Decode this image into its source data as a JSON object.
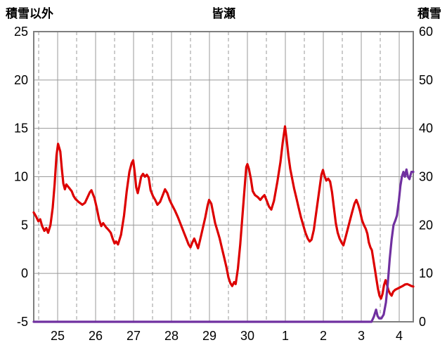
{
  "header": {
    "left_axis_title": "積雪以外",
    "chart_title": "皆瀬",
    "right_axis_title": "積雪"
  },
  "chart_data": {
    "type": "line",
    "title": "皆瀬",
    "left_axis": {
      "label": "積雪以外",
      "min": -5,
      "max": 25,
      "ticks": [
        25,
        20,
        15,
        10,
        5,
        0,
        -5
      ]
    },
    "right_axis": {
      "label": "積雪",
      "min": 0,
      "max": 60,
      "ticks": [
        60,
        50,
        40,
        30,
        20,
        10,
        0
      ]
    },
    "x_axis": {
      "range": [
        0,
        10
      ],
      "day_labels": [
        "25",
        "26",
        "27",
        "28",
        "29",
        "30",
        "1",
        "2",
        "3",
        "4"
      ],
      "label_positions": [
        0.63,
        1.63,
        2.63,
        3.63,
        4.63,
        5.63,
        6.63,
        7.63,
        8.63,
        9.63
      ],
      "dashed_positions": [
        0.13,
        1.13,
        2.13,
        3.13,
        4.13,
        5.13,
        6.13,
        7.13,
        8.13,
        9.13
      ]
    },
    "grid": {
      "on": true,
      "color": "#999999",
      "frame_color": "#7f7f7f"
    },
    "legend": "none",
    "series": [
      {
        "name": "積雪以外",
        "axis": "left",
        "color": "#dd0000",
        "width": 3.2,
        "points": [
          [
            0,
            6.3
          ],
          [
            0.06,
            5.9
          ],
          [
            0.12,
            5.4
          ],
          [
            0.17,
            5.6
          ],
          [
            0.22,
            4.9
          ],
          [
            0.28,
            4.4
          ],
          [
            0.33,
            4.7
          ],
          [
            0.38,
            4.2
          ],
          [
            0.44,
            5.0
          ],
          [
            0.5,
            6.8
          ],
          [
            0.55,
            9.2
          ],
          [
            0.6,
            12.2
          ],
          [
            0.64,
            13.4
          ],
          [
            0.7,
            12.6
          ],
          [
            0.74,
            10.8
          ],
          [
            0.78,
            9.3
          ],
          [
            0.82,
            8.7
          ],
          [
            0.86,
            9.2
          ],
          [
            0.92,
            8.9
          ],
          [
            1.0,
            8.5
          ],
          [
            1.05,
            8.0
          ],
          [
            1.1,
            7.7
          ],
          [
            1.18,
            7.4
          ],
          [
            1.28,
            7.1
          ],
          [
            1.35,
            7.3
          ],
          [
            1.42,
            7.9
          ],
          [
            1.48,
            8.4
          ],
          [
            1.52,
            8.6
          ],
          [
            1.56,
            8.2
          ],
          [
            1.6,
            7.8
          ],
          [
            1.66,
            6.8
          ],
          [
            1.72,
            5.6
          ],
          [
            1.78,
            4.9
          ],
          [
            1.83,
            5.2
          ],
          [
            1.9,
            4.8
          ],
          [
            1.97,
            4.5
          ],
          [
            2.03,
            4.2
          ],
          [
            2.08,
            3.6
          ],
          [
            2.13,
            3.1
          ],
          [
            2.17,
            3.3
          ],
          [
            2.22,
            3.0
          ],
          [
            2.3,
            4.0
          ],
          [
            2.38,
            6.0
          ],
          [
            2.45,
            8.5
          ],
          [
            2.52,
            10.5
          ],
          [
            2.58,
            11.4
          ],
          [
            2.62,
            11.7
          ],
          [
            2.66,
            10.5
          ],
          [
            2.7,
            8.9
          ],
          [
            2.74,
            8.3
          ],
          [
            2.79,
            9.2
          ],
          [
            2.83,
            10.0
          ],
          [
            2.88,
            10.3
          ],
          [
            2.93,
            10.0
          ],
          [
            2.98,
            10.2
          ],
          [
            3.03,
            9.9
          ],
          [
            3.08,
            8.6
          ],
          [
            3.14,
            8.0
          ],
          [
            3.2,
            7.6
          ],
          [
            3.26,
            7.1
          ],
          [
            3.33,
            7.4
          ],
          [
            3.4,
            8.1
          ],
          [
            3.46,
            8.7
          ],
          [
            3.52,
            8.3
          ],
          [
            3.58,
            7.6
          ],
          [
            3.64,
            7.1
          ],
          [
            3.72,
            6.5
          ],
          [
            3.8,
            5.8
          ],
          [
            3.88,
            5.0
          ],
          [
            3.96,
            4.2
          ],
          [
            4.02,
            3.6
          ],
          [
            4.08,
            3.0
          ],
          [
            4.13,
            2.7
          ],
          [
            4.18,
            3.2
          ],
          [
            4.23,
            3.6
          ],
          [
            4.28,
            3.1
          ],
          [
            4.33,
            2.6
          ],
          [
            4.38,
            3.4
          ],
          [
            4.45,
            4.6
          ],
          [
            4.52,
            5.8
          ],
          [
            4.58,
            7.0
          ],
          [
            4.62,
            7.6
          ],
          [
            4.68,
            7.2
          ],
          [
            4.73,
            6.2
          ],
          [
            4.78,
            5.2
          ],
          [
            4.84,
            4.4
          ],
          [
            4.9,
            3.6
          ],
          [
            4.96,
            2.6
          ],
          [
            5.02,
            1.6
          ],
          [
            5.08,
            0.6
          ],
          [
            5.13,
            -0.4
          ],
          [
            5.18,
            -1.0
          ],
          [
            5.23,
            -1.3
          ],
          [
            5.28,
            -0.9
          ],
          [
            5.32,
            -1.1
          ],
          [
            5.38,
            0.5
          ],
          [
            5.44,
            3.0
          ],
          [
            5.5,
            6.0
          ],
          [
            5.56,
            9.0
          ],
          [
            5.6,
            11.0
          ],
          [
            5.63,
            11.3
          ],
          [
            5.67,
            10.8
          ],
          [
            5.72,
            9.8
          ],
          [
            5.77,
            8.5
          ],
          [
            5.83,
            8.1
          ],
          [
            5.9,
            7.9
          ],
          [
            5.97,
            7.6
          ],
          [
            6.03,
            7.9
          ],
          [
            6.08,
            8.1
          ],
          [
            6.14,
            7.5
          ],
          [
            6.2,
            6.9
          ],
          [
            6.26,
            6.6
          ],
          [
            6.33,
            7.5
          ],
          [
            6.42,
            9.5
          ],
          [
            6.5,
            11.5
          ],
          [
            6.56,
            13.5
          ],
          [
            6.62,
            15.2
          ],
          [
            6.66,
            14.0
          ],
          [
            6.71,
            12.2
          ],
          [
            6.76,
            10.8
          ],
          [
            6.81,
            9.8
          ],
          [
            6.86,
            8.8
          ],
          [
            6.92,
            7.8
          ],
          [
            6.98,
            6.8
          ],
          [
            7.04,
            5.8
          ],
          [
            7.1,
            5.0
          ],
          [
            7.16,
            4.2
          ],
          [
            7.22,
            3.6
          ],
          [
            7.27,
            3.3
          ],
          [
            7.32,
            3.5
          ],
          [
            7.38,
            4.5
          ],
          [
            7.45,
            6.5
          ],
          [
            7.52,
            8.5
          ],
          [
            7.58,
            10.2
          ],
          [
            7.62,
            10.7
          ],
          [
            7.66,
            10.1
          ],
          [
            7.71,
            9.6
          ],
          [
            7.76,
            9.8
          ],
          [
            7.81,
            9.5
          ],
          [
            7.86,
            8.4
          ],
          [
            7.91,
            6.8
          ],
          [
            7.96,
            5.2
          ],
          [
            8.01,
            4.2
          ],
          [
            8.06,
            3.6
          ],
          [
            8.11,
            3.2
          ],
          [
            8.16,
            2.9
          ],
          [
            8.22,
            3.8
          ],
          [
            8.3,
            5.0
          ],
          [
            8.38,
            6.2
          ],
          [
            8.45,
            7.2
          ],
          [
            8.5,
            7.6
          ],
          [
            8.55,
            7.1
          ],
          [
            8.6,
            6.4
          ],
          [
            8.65,
            5.5
          ],
          [
            8.7,
            5.0
          ],
          [
            8.75,
            4.6
          ],
          [
            8.79,
            4.1
          ],
          [
            8.83,
            3.2
          ],
          [
            8.87,
            2.7
          ],
          [
            8.91,
            2.4
          ],
          [
            8.95,
            1.4
          ],
          [
            8.99,
            0.4
          ],
          [
            9.03,
            -0.6
          ],
          [
            9.07,
            -1.6
          ],
          [
            9.11,
            -2.3
          ],
          [
            9.15,
            -2.6
          ],
          [
            9.19,
            -2.1
          ],
          [
            9.23,
            -1.2
          ],
          [
            9.27,
            -0.7
          ],
          [
            9.31,
            -1.2
          ],
          [
            9.35,
            -1.8
          ],
          [
            9.39,
            -2.1
          ],
          [
            9.43,
            -2.3
          ],
          [
            9.47,
            -1.9
          ],
          [
            9.52,
            -1.7
          ],
          [
            9.57,
            -1.6
          ],
          [
            9.62,
            -1.5
          ],
          [
            9.67,
            -1.4
          ],
          [
            9.72,
            -1.3
          ],
          [
            9.78,
            -1.15
          ],
          [
            9.84,
            -1.1
          ],
          [
            9.9,
            -1.2
          ],
          [
            9.95,
            -1.3
          ],
          [
            10,
            -1.35
          ]
        ]
      },
      {
        "name": "積雪",
        "axis": "right",
        "color": "#7030a0",
        "width": 3.2,
        "points": [
          [
            0,
            0
          ],
          [
            8.9,
            0
          ],
          [
            8.96,
            1.0
          ],
          [
            9.02,
            2.5
          ],
          [
            9.06,
            1.2
          ],
          [
            9.1,
            0.7
          ],
          [
            9.16,
            0.7
          ],
          [
            9.22,
            1.5
          ],
          [
            9.28,
            4.0
          ],
          [
            9.33,
            8.0
          ],
          [
            9.38,
            13.0
          ],
          [
            9.43,
            17.0
          ],
          [
            9.48,
            20.0
          ],
          [
            9.53,
            21.0
          ],
          [
            9.57,
            22.0
          ],
          [
            9.62,
            25.0
          ],
          [
            9.66,
            28.0
          ],
          [
            9.7,
            30.0
          ],
          [
            9.74,
            31.0
          ],
          [
            9.78,
            30.0
          ],
          [
            9.82,
            31.5
          ],
          [
            9.86,
            30.0
          ],
          [
            9.9,
            29.5
          ],
          [
            9.95,
            31.0
          ],
          [
            10,
            31.0
          ]
        ]
      }
    ]
  }
}
